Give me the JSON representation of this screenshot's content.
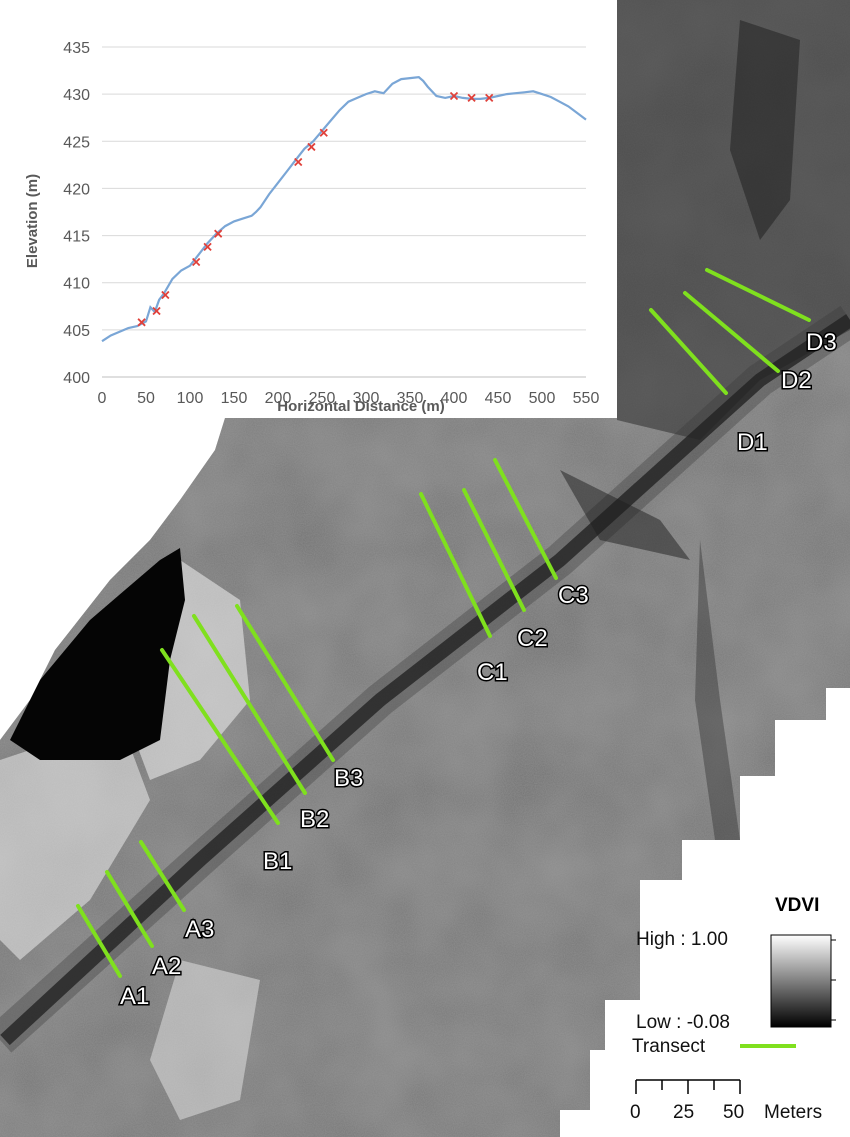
{
  "map": {
    "legend": {
      "title": "VDVI",
      "high_label": "High : 1.00",
      "low_label": "Low : -0.08",
      "transect_label": "Transect",
      "transect_color": "#7fe01e",
      "scale_ticks": [
        "0",
        "25",
        "50"
      ],
      "scale_unit": "Meters"
    },
    "transects": [
      {
        "label": "A1"
      },
      {
        "label": "A2"
      },
      {
        "label": "A3"
      },
      {
        "label": "B1"
      },
      {
        "label": "B2"
      },
      {
        "label": "B3"
      },
      {
        "label": "C1"
      },
      {
        "label": "C2"
      },
      {
        "label": "C3"
      },
      {
        "label": "D1"
      },
      {
        "label": "D2"
      },
      {
        "label": "D3"
      }
    ]
  },
  "chart_data": {
    "type": "line",
    "xlabel": "Horizontal Distance (m)",
    "ylabel": "Elevation (m)",
    "xlim": [
      0,
      550
    ],
    "ylim": [
      400,
      435
    ],
    "xticks": [
      0,
      50,
      100,
      150,
      200,
      250,
      300,
      350,
      400,
      450,
      500,
      550
    ],
    "yticks": [
      400,
      405,
      410,
      415,
      420,
      425,
      430,
      435
    ],
    "grid": "horizontal",
    "line_color": "#7aa6d6",
    "marker_color": "#e0403a",
    "profile": {
      "x": [
        0,
        10,
        20,
        30,
        40,
        50,
        55,
        60,
        65,
        70,
        80,
        90,
        100,
        110,
        120,
        130,
        140,
        150,
        160,
        170,
        175,
        180,
        190,
        200,
        210,
        220,
        230,
        240,
        250,
        260,
        270,
        280,
        290,
        300,
        310,
        320,
        330,
        340,
        350,
        360,
        365,
        370,
        380,
        390,
        400,
        410,
        420,
        430,
        440,
        450,
        460,
        470,
        480,
        490,
        500,
        510,
        520,
        530,
        540,
        550
      ],
      "y": [
        403.8,
        404.4,
        404.8,
        405.2,
        405.4,
        405.9,
        407.4,
        406.9,
        408.2,
        408.8,
        410.4,
        411.3,
        411.8,
        413.0,
        414.2,
        415.2,
        416.0,
        416.5,
        416.8,
        417.1,
        417.5,
        418.0,
        419.4,
        420.6,
        421.8,
        423.0,
        424.2,
        425.0,
        426.1,
        427.2,
        428.3,
        429.2,
        429.6,
        430.0,
        430.3,
        430.1,
        431.1,
        431.6,
        431.7,
        431.8,
        431.4,
        430.8,
        429.8,
        429.6,
        429.8,
        429.6,
        429.5,
        429.5,
        429.6,
        429.8,
        430.0,
        430.1,
        430.2,
        430.3,
        430.0,
        429.7,
        429.2,
        428.7,
        428.0,
        427.3
      ]
    },
    "samples": {
      "x": [
        45,
        62,
        72,
        107,
        120,
        132,
        223,
        238,
        252,
        400,
        420,
        440
      ],
      "y": [
        405.8,
        407.0,
        408.7,
        412.2,
        413.8,
        415.2,
        422.8,
        424.4,
        425.9,
        429.8,
        429.6,
        429.6
      ]
    }
  }
}
